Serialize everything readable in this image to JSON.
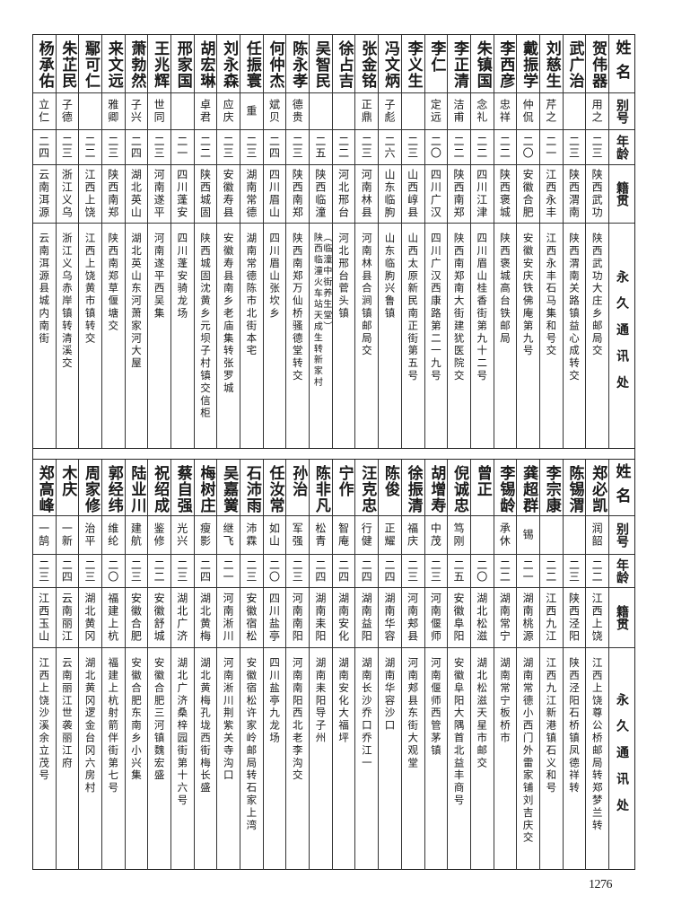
{
  "headers": {
    "name": "姓名",
    "alias": "别号",
    "age": "年龄",
    "native": "籍贯",
    "address": "永久通讯处"
  },
  "top_table": [
    {
      "name": "贺伟器",
      "alias": "用之",
      "age": "二三",
      "native": "陕西武功",
      "address": "陕西武功大庄乡邮局交"
    },
    {
      "name": "武广治",
      "alias": "",
      "age": "二三",
      "native": "陕西渭南",
      "address": "陕西渭南关路镇益心成转交"
    },
    {
      "name": "刘慈生",
      "alias": "芹之",
      "age": "二一",
      "native": "江西永丰",
      "address": "江西永丰石马集和号交"
    },
    {
      "name": "戴振学",
      "alias": "仲侃",
      "age": "二〇",
      "native": "安徽合肥",
      "address": "安徽安庆铁佛庵第九号"
    },
    {
      "name": "李西彦",
      "alias": "忠祥",
      "age": "二二",
      "native": "陕西褒城",
      "address": "陕西褒城高台铁邮局"
    },
    {
      "name": "朱镇国",
      "alias": "念礼",
      "age": "二二",
      "native": "四川江津",
      "address": "四川眉山桂香街第九十二号"
    },
    {
      "name": "李正清",
      "alias": "洁甫",
      "age": "二二",
      "native": "陕西南郑",
      "address": "陕西南郑南大街建犹医院交"
    },
    {
      "name": "李仁",
      "alias": "定远",
      "age": "二〇",
      "native": "四川广汉",
      "address": "四川广汉西康路第二一九号"
    },
    {
      "name": "李义生",
      "alias": "",
      "age": "二三",
      "native": "山西崞县",
      "address": "山西太原新民南正街第五号"
    },
    {
      "name": "冯文炳",
      "alias": "子彪",
      "age": "二六",
      "native": "山东临朐",
      "address": "山东临朐兴鲁镇"
    },
    {
      "name": "张金铭",
      "alias": "正鼎",
      "age": "二三",
      "native": "河南林县",
      "address": "河南林县合涧镇邮局交"
    },
    {
      "name": "徐占吉",
      "alias": "",
      "age": "二二",
      "native": "河北邢台",
      "address": "河北邢台菅头镇"
    },
    {
      "name": "吴智民",
      "alias": "",
      "age": "二五",
      "native": "陕西临潼",
      "address": "陕西临潼火车站天成生转新家村",
      "address_note": "（临潼中街养生堂）"
    },
    {
      "name": "陈永孝",
      "alias": "德贵",
      "age": "二三",
      "native": "陕西南郑",
      "address": "陕西南郑万仙桥骚德堂转交"
    },
    {
      "name": "何仲杰",
      "alias": "斌贝",
      "age": "二四",
      "native": "四川眉山",
      "address": "四川眉山张坎乡"
    },
    {
      "name": "任振寰",
      "alias": "重",
      "age": "二三",
      "native": "湖南常德",
      "address": "湖南常德陈市北街本宅"
    },
    {
      "name": "刘永森",
      "alias": "应庆",
      "age": "二三",
      "native": "安徽寿县",
      "address": "安徽寿县南乡老庙集转张罗城"
    },
    {
      "name": "胡宏琳",
      "alias": "卓君",
      "age": "二二",
      "native": "陕西城固",
      "address": "陕西城固沈黄乡元坝子村镇交信柜"
    },
    {
      "name": "邢家国",
      "alias": "",
      "age": "二一",
      "native": "四川蓬安",
      "address": "四川蓬安骑龙场"
    },
    {
      "name": "王兆辉",
      "alias": "世同",
      "age": "二三",
      "native": "河南遂平",
      "address": "河南遂平西吴集"
    },
    {
      "name": "萧勃然",
      "alias": "子兴",
      "age": "二四",
      "native": "湖北英山",
      "address": "湖北英山东河萧家河大屋"
    },
    {
      "name": "来文远",
      "alias": "雅卿",
      "age": "二三",
      "native": "陕西南郑",
      "address": "陕西南郑草偃塘交"
    },
    {
      "name": "鄢可仁",
      "alias": "",
      "age": "二二",
      "native": "江西上饶",
      "address": "江西上饶黄市镇转交"
    },
    {
      "name": "朱芷民",
      "alias": "子德",
      "age": "二三",
      "native": "浙江义乌",
      "address": "浙江义乌赤岸镇转清溪交"
    },
    {
      "name": "杨承佑",
      "alias": "立仁",
      "age": "二四",
      "native": "云南洱源",
      "address": "云南洱源县城内南街"
    }
  ],
  "bottom_table": [
    {
      "name": "郑必凯",
      "alias": "润韶",
      "age": "二二",
      "native": "江西上饶",
      "address": "江西上饶尊公桥邮局转郑梦兰转"
    },
    {
      "name": "陈锡渭",
      "alias": "",
      "age": "二三",
      "native": "陕西泾阳",
      "address": "陕西泾阳石桥镇凤德祥转"
    },
    {
      "name": "李宗康",
      "alias": "",
      "age": "二二",
      "native": "江西九江",
      "address": "江西九江新港镇石义和号"
    },
    {
      "name": "龚超群",
      "alias": "锡",
      "age": "二一",
      "native": "湖南桃源",
      "address": "湖南常德小西门外雷家铺刘吉庆交"
    },
    {
      "name": "李锡龄",
      "alias": "承休",
      "age": "二二",
      "native": "湖南常宁",
      "address": "湖南常宁板桥市"
    },
    {
      "name": "曾正",
      "alias": "",
      "age": "二〇",
      "native": "湖北松滋",
      "address": "湖北松滋天星市邮交"
    },
    {
      "name": "倪诚忠",
      "alias": "笃刚",
      "age": "二五",
      "native": "安徽阜阳",
      "address": "安徽阜阳大隅首北益丰商号"
    },
    {
      "name": "胡增寿",
      "alias": "中茂",
      "age": "二三",
      "native": "河南偃师",
      "address": "河南偃师西管茅镇"
    },
    {
      "name": "徐振清",
      "alias": "福庆",
      "age": "二三",
      "native": "河南郏县",
      "address": "河南郏县东街大观堂"
    },
    {
      "name": "陈俊",
      "alias": "正耀",
      "age": "二四",
      "native": "湖南华容",
      "address": "湖南华容沙口"
    },
    {
      "name": "汪克忠",
      "alias": "行健",
      "age": "二四",
      "native": "湖南益阳",
      "address": "湖南长沙乔口乔江一"
    },
    {
      "name": "宁作",
      "alias": "智庵",
      "age": "二四",
      "native": "湖南安化",
      "address": "湖南安化大福坪"
    },
    {
      "name": "陈非凡",
      "alias": "松青",
      "age": "二四",
      "native": "湖南耒阳",
      "address": "湖南耒阳导子州"
    },
    {
      "name": "孙治",
      "alias": "军强",
      "age": "二三",
      "native": "河南南阳",
      "address": "河南南阳西北老李沟交"
    },
    {
      "name": "任汝常",
      "alias": "如山",
      "age": "二〇",
      "native": "四川盐亭",
      "address": "四川盐亭九龙场"
    },
    {
      "name": "石沛雨",
      "alias": "沛霖",
      "age": "二三",
      "native": "安徽宿松",
      "address": "安徽宿松许家岭邮局转石家上湾"
    },
    {
      "name": "吴嘉黉",
      "alias": "继飞",
      "age": "二一",
      "native": "河南淅川",
      "address": "河南淅川荆紫关寺沟口"
    },
    {
      "name": "梅树庄",
      "alias": "瘦影",
      "age": "二四",
      "native": "湖北黄梅",
      "address": "湖北黄梅孔垅西街梅长盛"
    },
    {
      "name": "蔡自强",
      "alias": "光兴",
      "age": "二三",
      "native": "湖北广济",
      "address": "湖北广济桑梓园街第十六号"
    },
    {
      "name": "祝绍成",
      "alias": "鉴修",
      "age": "二二",
      "native": "安徽舒城",
      "address": "安徽合肥三河镇魏宏盛"
    },
    {
      "name": "陆业川",
      "alias": "建航",
      "age": "二三",
      "native": "安徽合肥",
      "address": "安徽合肥东南乡小兴集"
    },
    {
      "name": "郭经纬",
      "alias": "维纶",
      "age": "二〇",
      "native": "福建上杭",
      "address": "福建上杭射箭伴街第七号"
    },
    {
      "name": "周家修",
      "alias": "治平",
      "age": "二三",
      "native": "湖北黄冈",
      "address": "湖北黄冈逻金台冈六房村"
    },
    {
      "name": "木庆",
      "alias": "一新",
      "age": "二四",
      "native": "云南丽江",
      "address": "云南丽江世袭丽江府"
    },
    {
      "name": "郑高峰",
      "alias": "一鹄",
      "age": "二三",
      "native": "江西玉山",
      "address": "江西上饶沙溪余立茂号"
    }
  ],
  "page_number": "1276"
}
